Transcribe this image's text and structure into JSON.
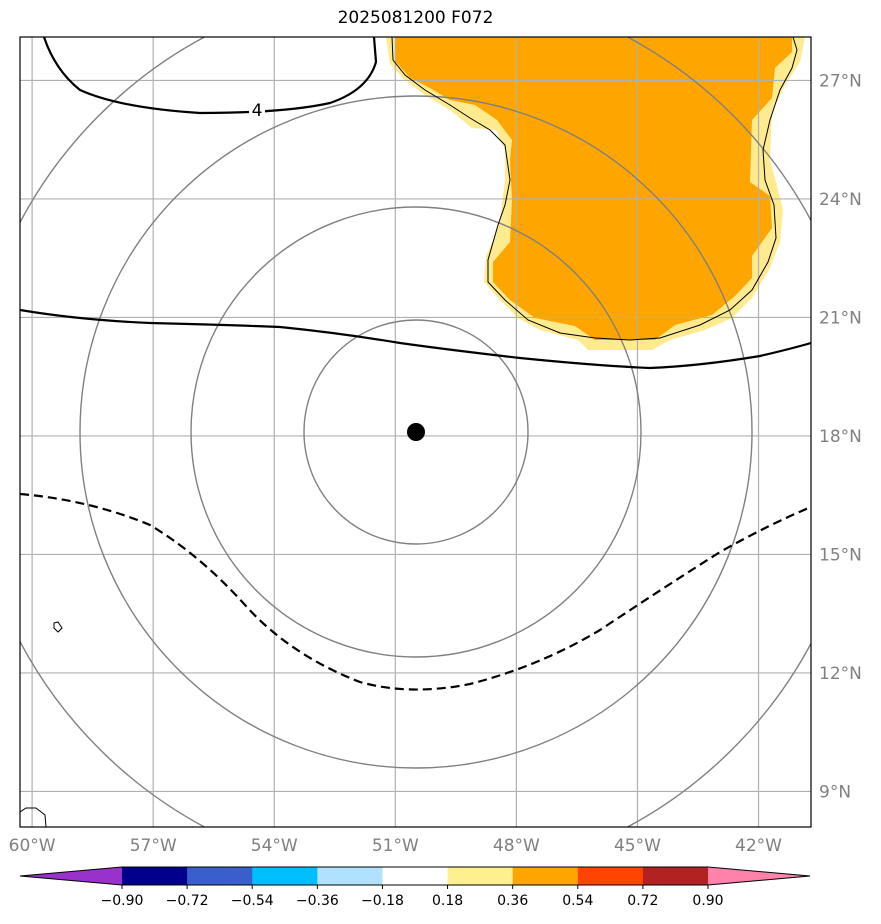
{
  "title": "2025081200 F072",
  "map": {
    "lon_range": [
      -60.3,
      -40.7
    ],
    "lat_range": [
      8.1,
      28.1
    ],
    "lon_ticks": [
      "60°W",
      "57°W",
      "54°W",
      "51°W",
      "48°W",
      "45°W",
      "42°W"
    ],
    "lat_ticks": [
      "27°N",
      "24°N",
      "21°N",
      "18°N",
      "15°N",
      "12°N",
      "9°N"
    ],
    "grid": true,
    "center": {
      "lon": -50.5,
      "lat": 18.1,
      "marker": "black-dot"
    },
    "range_rings": 4,
    "contour_label": "4",
    "shaded_field_color": "#ffa500",
    "shaded_field_edge_color": "#ffeb8f"
  },
  "colorbar": {
    "colors": [
      "#9932cc",
      "#00008b",
      "#3a5fcd",
      "#00bfff",
      "#b0e2ff",
      "#ffffff",
      "#fff08f",
      "#ffa500",
      "#ff4500",
      "#b22222",
      "#ff82ab"
    ],
    "extend": "both",
    "labels": [
      "−0.90",
      "−0.72",
      "−0.54",
      "−0.36",
      "−0.18",
      "0.18",
      "0.36",
      "0.54",
      "0.72",
      "0.90"
    ]
  }
}
